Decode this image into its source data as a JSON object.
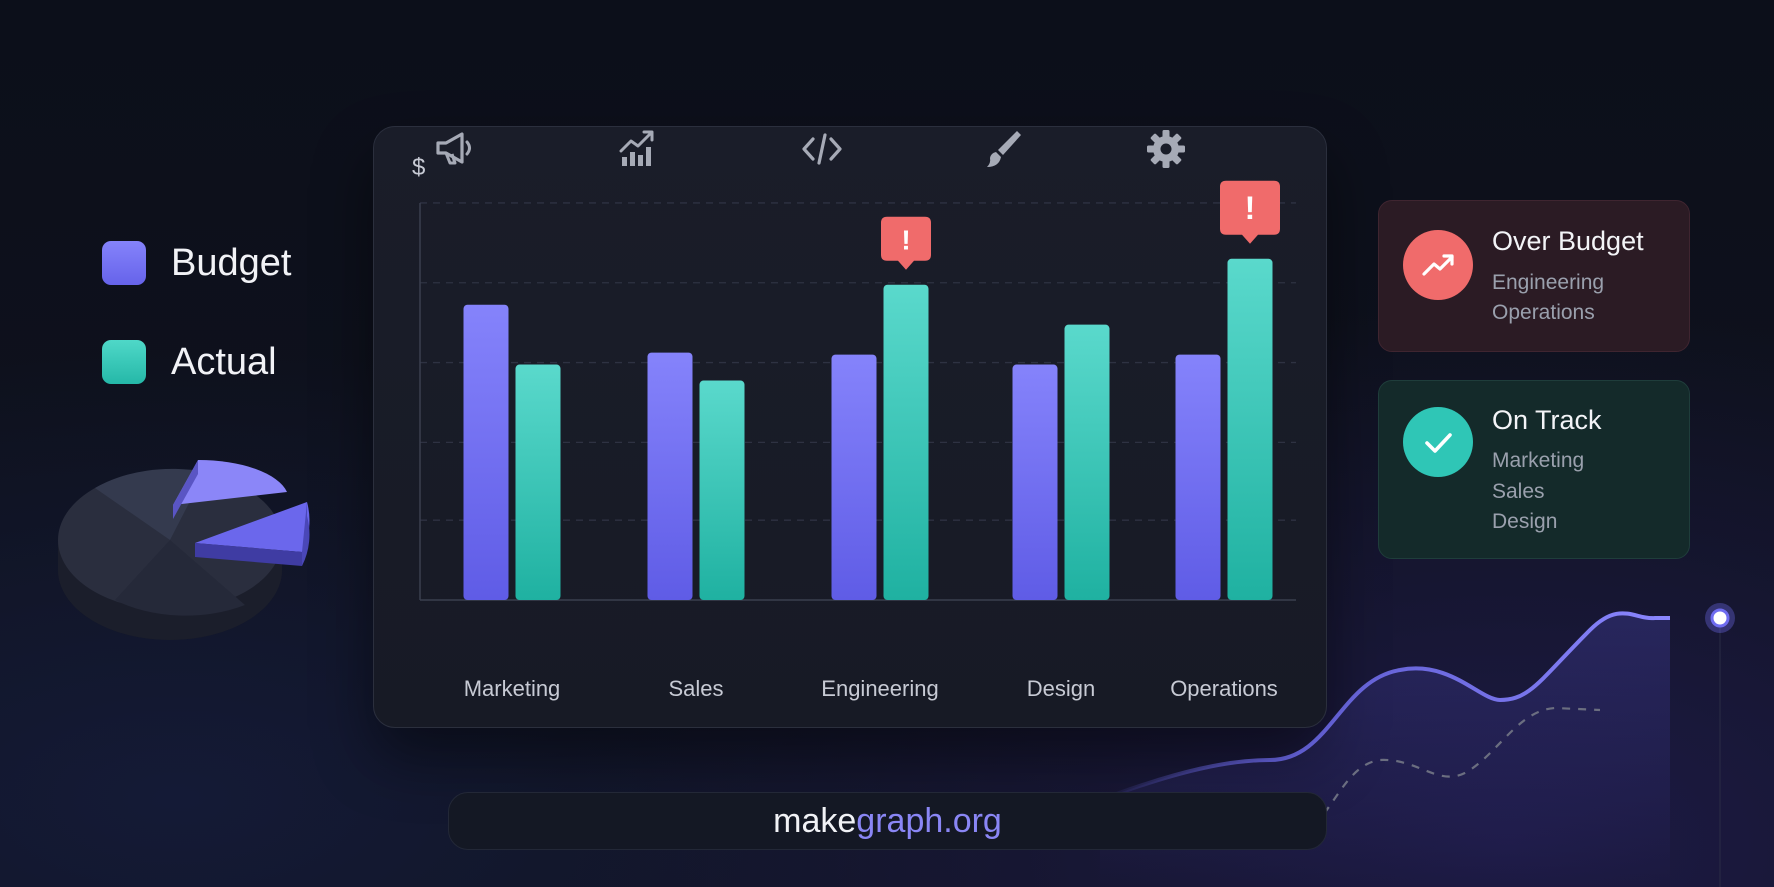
{
  "legend": {
    "items": [
      {
        "label": "Budget",
        "color": "#6f6cf0"
      },
      {
        "label": "Actual",
        "color": "#2fc6b6"
      }
    ]
  },
  "chart_data": {
    "type": "bar",
    "ylabel": "$",
    "categories": [
      "Marketing",
      "Sales",
      "Engineering",
      "Design",
      "Operations"
    ],
    "category_icons": [
      "megaphone-icon",
      "chart-trend-icon",
      "code-icon",
      "paintbrush-icon",
      "gear-icon"
    ],
    "series": [
      {
        "name": "Budget",
        "color": "#6f6cf0",
        "values": [
          74,
          62,
          61.5,
          59,
          61.5
        ]
      },
      {
        "name": "Actual",
        "color": "#2fc6b6",
        "values": [
          59,
          55,
          79,
          69,
          85.5
        ]
      }
    ],
    "ylim": [
      0,
      106
    ],
    "gridlines": [
      20,
      39.5,
      59.5,
      79.5,
      99.5
    ],
    "alerts": [
      "Engineering",
      "Operations"
    ],
    "alert_color": "#f06b6b",
    "alert_glyph": "!",
    "grid": true
  },
  "status_cards": [
    {
      "title": "Over Budget",
      "items": [
        "Engineering",
        "Operations"
      ],
      "icon": "trend-up-icon",
      "color": "#f06b6b"
    },
    {
      "title": "On Track",
      "items": [
        "Marketing",
        "Sales",
        "Design"
      ],
      "icon": "check-icon",
      "color": "#2fc6b6"
    }
  ],
  "footer": {
    "url_part1": "make",
    "url_part2": "graph.org"
  }
}
